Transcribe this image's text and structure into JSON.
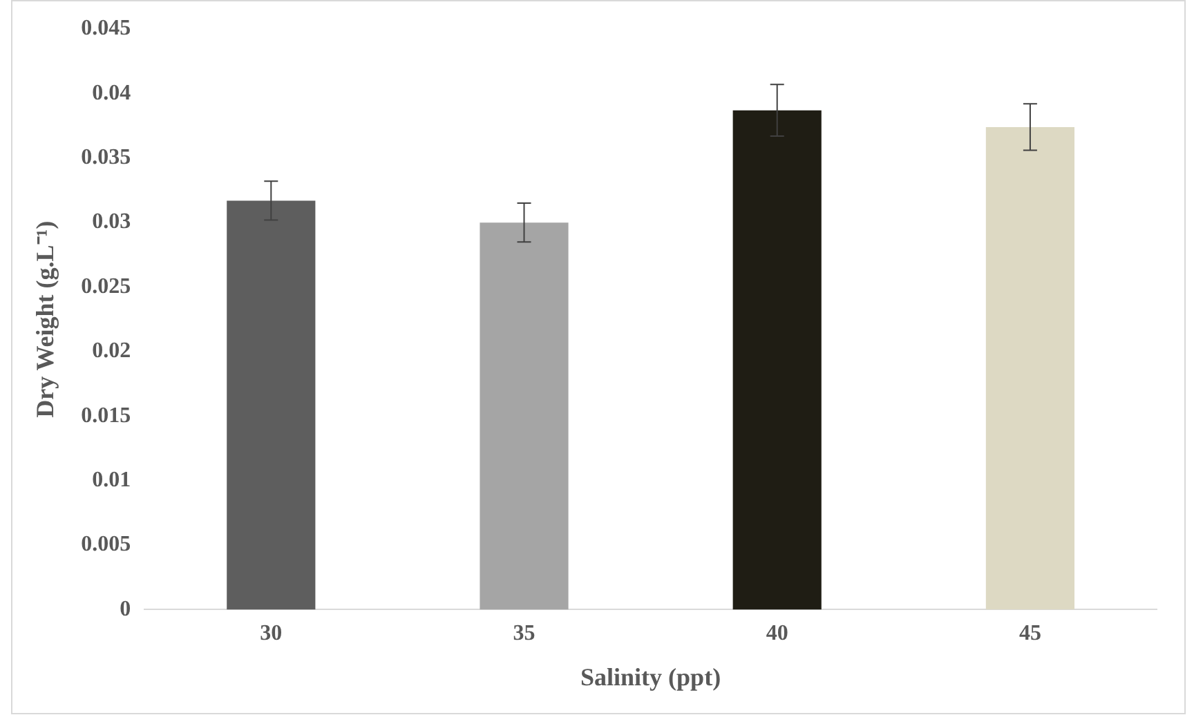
{
  "chart_data": {
    "type": "bar",
    "xlabel": "Salinity (ppt)",
    "ylabel": "Dry Weight (g.L⁻¹)",
    "categories": [
      "30",
      "35",
      "40",
      "45"
    ],
    "values": [
      0.0317,
      0.03,
      0.0387,
      0.0374
    ],
    "errors": [
      0.0015,
      0.0015,
      0.002,
      0.0018
    ],
    "colors": [
      "#5e5e5e",
      "#a5a5a5",
      "#1f1d14",
      "#ddd9c3"
    ],
    "ylim": [
      0,
      0.045
    ],
    "yticks": [
      0,
      0.005,
      0.01,
      0.015,
      0.02,
      0.025,
      0.03,
      0.035,
      0.04,
      0.045
    ],
    "grid": false,
    "legend": false
  }
}
